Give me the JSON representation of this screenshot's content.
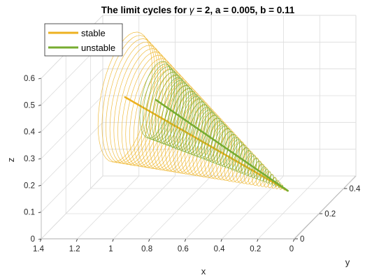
{
  "chart_data": {
    "type": "line",
    "projection": "3d",
    "title_prefix": "The limit cycles for ",
    "title_symbol": "γ",
    "title_suffix": " = 2, a = 0.005, b = 0.11",
    "xlabel": "x",
    "ylabel": "y",
    "zlabel": "z",
    "xlim": [
      0,
      1.4
    ],
    "ylim": [
      0,
      0.5
    ],
    "zlim": [
      0,
      0.6
    ],
    "xticks": [
      "1.4",
      "1.2",
      "1",
      "0.8",
      "0.6",
      "0.4",
      "0.2",
      "0"
    ],
    "yticks": [
      "0",
      "0.2",
      "0.4"
    ],
    "zticks": [
      "0",
      "0.1",
      "0.2",
      "0.3",
      "0.4",
      "0.5",
      "0.6"
    ],
    "grid": true,
    "legend_position": "top-left",
    "series": [
      {
        "name": "stable",
        "color": "#EDB120",
        "centerline": {
          "x": [
            0.05,
            0.95
          ],
          "y": [
            0.02,
            0.02
          ],
          "z": [
            0.17,
            0.52
          ]
        },
        "cycle_radius_at_far_end": 0.22
      },
      {
        "name": "unstable",
        "color": "#77AC30",
        "centerline": {
          "x": [
            0.05,
            0.78
          ],
          "y": [
            0.02,
            0.02
          ],
          "z": [
            0.17,
            0.51
          ]
        },
        "cycle_radius_at_far_end": 0.13
      }
    ]
  }
}
